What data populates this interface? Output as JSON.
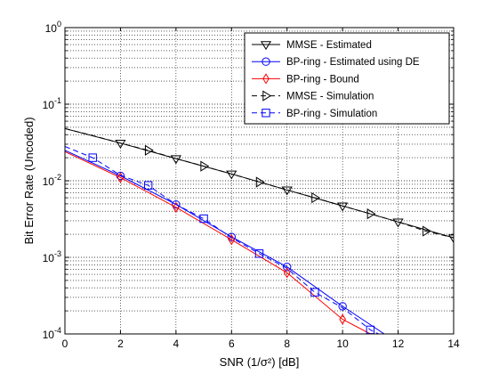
{
  "chart_data": {
    "type": "line",
    "xlabel": "SNR (1/σ²) [dB]",
    "ylabel": "Bit Error Rate (Uncoded)",
    "xlim": [
      0,
      14
    ],
    "ylim": [
      0.0001,
      1
    ],
    "yscale": "log",
    "grid": "major and minor (dotted)",
    "legend_position": "top-right",
    "x_ticks": [
      "0",
      "2",
      "4",
      "6",
      "8",
      "10",
      "12",
      "14"
    ],
    "y_ticks": [
      {
        "base": "10",
        "exp": "-4"
      },
      {
        "base": "10",
        "exp": "-3"
      },
      {
        "base": "10",
        "exp": "-2"
      },
      {
        "base": "10",
        "exp": "-1"
      },
      {
        "base": "10",
        "exp": "0"
      }
    ],
    "series": [
      {
        "name": "MMSE - Estimated",
        "color": "#000000",
        "line_style": "solid",
        "marker": "triangle-down",
        "marker_color": "#000000",
        "x": [
          0,
          2,
          4,
          6,
          8,
          10,
          12,
          14
        ],
        "y": [
          0.048,
          0.031,
          0.0195,
          0.0123,
          0.0076,
          0.0047,
          0.0029,
          0.0018
        ]
      },
      {
        "name": "BP-ring - Estimated using DE",
        "color": "#0000ff",
        "line_style": "solid",
        "marker": "circle",
        "marker_color": "#0000ff",
        "x": [
          0,
          2,
          4,
          6,
          8,
          10,
          11.5
        ],
        "y": [
          0.025,
          0.0116,
          0.0049,
          0.00185,
          0.00075,
          0.00023,
          0.0001
        ]
      },
      {
        "name": "BP-ring - Bound",
        "color": "#ff0000",
        "line_style": "solid",
        "marker": "diamond",
        "marker_color": "#ff0000",
        "x": [
          0,
          2,
          4,
          6,
          8,
          10,
          11
        ],
        "y": [
          0.024,
          0.011,
          0.0045,
          0.0017,
          0.00063,
          0.000155,
          0.0001
        ]
      },
      {
        "name": "MMSE - Simulation",
        "color": "#000000",
        "line_style": "dashed",
        "marker": "triangle-right",
        "marker_color": "#000000",
        "x": [
          0,
          1,
          2,
          3,
          4,
          5,
          6,
          7,
          8,
          9,
          10,
          11,
          12,
          13,
          14
        ],
        "y": [
          0.048,
          0.039,
          0.031,
          0.025,
          0.0195,
          0.0155,
          0.0123,
          0.0096,
          0.0076,
          0.006,
          0.0047,
          0.0037,
          0.0029,
          0.0022,
          0.0018
        ]
      },
      {
        "name": "BP-ring - Simulation",
        "color": "#0000ff",
        "line_style": "dashed",
        "marker": "square",
        "marker_color": "#0000ff",
        "x": [
          0,
          1,
          2,
          3,
          4,
          5,
          6,
          7,
          8,
          9,
          10,
          11,
          11.3
        ],
        "y": [
          0.028,
          0.02,
          0.0118,
          0.0087,
          0.0049,
          0.0032,
          0.0018,
          0.00112,
          0.00072,
          0.00035,
          0.00022,
          0.000113,
          0.0001
        ]
      }
    ],
    "marker_points": {
      "MMSE - Estimated": [
        2,
        4,
        6,
        8,
        10,
        12,
        14
      ],
      "BP-ring - Estimated using DE": [
        2,
        4,
        6,
        8,
        10
      ],
      "BP-ring - Bound": [
        2,
        4,
        6,
        8,
        10
      ],
      "MMSE - Simulation": [
        3,
        5,
        7,
        9,
        11,
        13
      ],
      "BP-ring - Simulation": [
        1,
        3,
        5,
        7,
        9,
        11
      ]
    }
  }
}
